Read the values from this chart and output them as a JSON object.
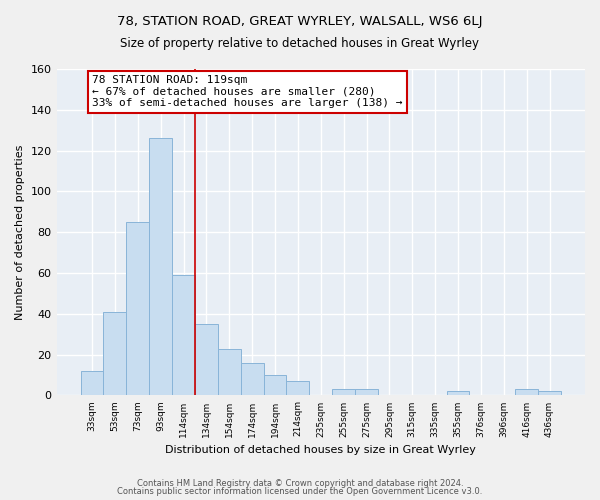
{
  "title": "78, STATION ROAD, GREAT WYRLEY, WALSALL, WS6 6LJ",
  "subtitle": "Size of property relative to detached houses in Great Wyrley",
  "xlabel": "Distribution of detached houses by size in Great Wyrley",
  "ylabel": "Number of detached properties",
  "footnote1": "Contains HM Land Registry data © Crown copyright and database right 2024.",
  "footnote2": "Contains public sector information licensed under the Open Government Licence v3.0.",
  "categories": [
    "33sqm",
    "53sqm",
    "73sqm",
    "93sqm",
    "114sqm",
    "134sqm",
    "154sqm",
    "174sqm",
    "194sqm",
    "214sqm",
    "235sqm",
    "255sqm",
    "275sqm",
    "295sqm",
    "315sqm",
    "335sqm",
    "355sqm",
    "376sqm",
    "396sqm",
    "416sqm",
    "436sqm"
  ],
  "values": [
    12,
    41,
    85,
    126,
    59,
    35,
    23,
    16,
    10,
    7,
    0,
    3,
    3,
    0,
    0,
    0,
    2,
    0,
    0,
    3,
    2
  ],
  "bar_color": "#c8ddf0",
  "bar_edge_color": "#89b4d8",
  "vline_x_index": 4,
  "vline_color": "#cc0000",
  "annotation_title": "78 STATION ROAD: 119sqm",
  "annotation_line1": "← 67% of detached houses are smaller (280)",
  "annotation_line2": "33% of semi-detached houses are larger (138) →",
  "annotation_box_color": "white",
  "annotation_box_edge": "#cc0000",
  "ylim": [
    0,
    160
  ],
  "yticks": [
    0,
    20,
    40,
    60,
    80,
    100,
    120,
    140,
    160
  ],
  "plot_bg_color": "#e8eef5",
  "fig_bg_color": "#f0f0f0",
  "grid_color": "white"
}
